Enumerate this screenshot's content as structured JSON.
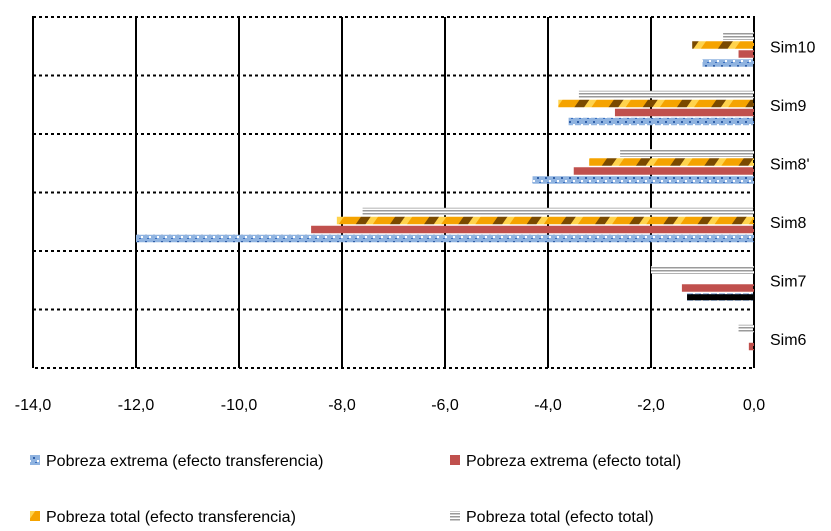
{
  "chart_data": {
    "type": "bar",
    "orientation": "horizontal",
    "categories": [
      "Sim10",
      "Sim9",
      "Sim8'",
      "Sim8",
      "Sim7",
      "Sim6"
    ],
    "series": [
      {
        "name": "Pobreza total (efecto total)",
        "color": "#b0b0b0",
        "pattern": "stripes-gray",
        "values": [
          -0.6,
          -3.4,
          -2.6,
          -7.6,
          -2.0,
          -0.3
        ]
      },
      {
        "name": "Pobreza total (efecto transferencia)",
        "color": "#f2a100",
        "pattern": "gold",
        "values": [
          -1.2,
          -3.8,
          -3.2,
          -8.1,
          0.0,
          0.0
        ]
      },
      {
        "name": "Pobreza extrema (efecto total)",
        "color": "#c0504d",
        "pattern": "solid",
        "values": [
          -0.3,
          -2.7,
          -3.5,
          -8.6,
          -1.4,
          -0.1
        ]
      },
      {
        "name": "Pobreza extrema (efecto transferencia)",
        "color": "#4f81bd",
        "pattern": "blue",
        "values": [
          -1.0,
          -3.6,
          -4.3,
          -12.0,
          -1.3,
          0.0
        ]
      }
    ],
    "xlim": [
      -14.0,
      0.0
    ],
    "xticks": [
      "-14,0",
      "-12,0",
      "-10,0",
      "-8,0",
      "-6,0",
      "-4,0",
      "-2,0",
      "0,0"
    ],
    "grid": true,
    "legend_position": "bottom",
    "title": "",
    "xlabel": "",
    "ylabel": ""
  }
}
